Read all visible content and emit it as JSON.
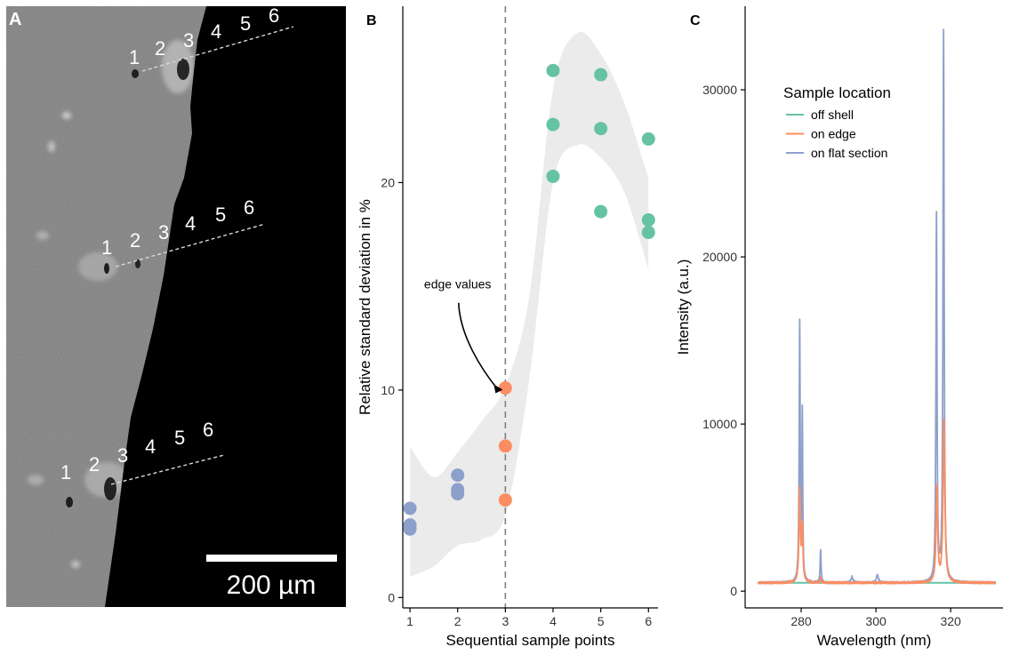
{
  "panels": {
    "a": {
      "label": "A",
      "scalebar": "200 µm"
    },
    "b": {
      "label": "B"
    },
    "c": {
      "label": "C"
    }
  },
  "micrograph_markers": {
    "line1": [
      "1",
      "2",
      "3",
      "4",
      "5",
      "6"
    ],
    "line2": [
      "1",
      "2",
      "3",
      "4",
      "5",
      "6"
    ],
    "line3": [
      "1",
      "2",
      "3",
      "4",
      "5",
      "6"
    ]
  },
  "colors": {
    "off_shell": "#66c2a5",
    "on_edge": "#fc8d62",
    "on_flat": "#8da0cb",
    "ribbon": "#ebebeb",
    "sem_bg": "#7b7b7b",
    "sem_black": "#000000"
  },
  "chart_data": [
    {
      "id": "rsd",
      "type": "scatter",
      "xlabel": "Sequential sample points",
      "ylabel": "Relative standard deviation in %",
      "xlim": [
        0.85,
        6.2
      ],
      "ylim": [
        -0.5,
        28.5
      ],
      "xticks": [
        "1",
        "2",
        "3",
        "4",
        "5",
        "6"
      ],
      "yticks": [
        "0",
        "10",
        "20"
      ],
      "vline_x": 3,
      "annotation": {
        "text": "edge values",
        "target": [
          3,
          10.1
        ]
      },
      "series": [
        {
          "name": "on flat section",
          "points": [
            [
              1,
              4.3
            ],
            [
              1,
              3.5
            ],
            [
              1,
              3.3
            ],
            [
              2,
              5.9
            ],
            [
              2,
              5.2
            ],
            [
              2,
              5.0
            ]
          ]
        },
        {
          "name": "on edge",
          "points": [
            [
              3,
              10.1
            ],
            [
              3,
              7.3
            ],
            [
              3,
              4.7
            ]
          ]
        },
        {
          "name": "off shell",
          "points": [
            [
              4,
              25.4
            ],
            [
              4,
              22.8
            ],
            [
              4,
              20.3
            ],
            [
              5,
              25.2
            ],
            [
              5,
              22.6
            ],
            [
              5,
              18.6
            ],
            [
              6,
              22.1
            ],
            [
              6,
              18.2
            ],
            [
              6,
              17.6
            ]
          ]
        }
      ],
      "ribbon": {
        "x": [
          1,
          1.5,
          2,
          2.5,
          3,
          3.5,
          4,
          4.5,
          5,
          5.5,
          6
        ],
        "upper": [
          7.3,
          5.8,
          7.0,
          8.5,
          10.2,
          14.5,
          24.5,
          27.2,
          26.2,
          23.8,
          20.2
        ],
        "lower": [
          1.0,
          1.5,
          2.5,
          2.8,
          4.0,
          10.5,
          20.0,
          21.8,
          21.2,
          19.5,
          15.8
        ]
      }
    },
    {
      "id": "spectra",
      "type": "line",
      "title": "Sample location",
      "xlabel": "Wavelength (nm)",
      "ylabel": "Intensity (a.u.)",
      "xlim": [
        265,
        334
      ],
      "ylim": [
        -1000,
        35000
      ],
      "xticks": [
        "280",
        "300",
        "320"
      ],
      "yticks": [
        "0",
        "10000",
        "20000",
        "30000"
      ],
      "baseline": 500,
      "legend": [
        "off shell",
        "on edge",
        "on flat section"
      ],
      "series": [
        {
          "name": "off shell",
          "peaks": []
        },
        {
          "name": "on edge",
          "peaks": [
            [
              279.6,
              5500,
              0.22
            ],
            [
              280.3,
              3200,
              0.2
            ],
            [
              285.2,
              300,
              0.15
            ],
            [
              316.3,
              5700,
              0.25
            ],
            [
              318.2,
              9700,
              0.28
            ]
          ]
        },
        {
          "name": "on flat section",
          "peaks": [
            [
              279.6,
              15400,
              0.16
            ],
            [
              280.3,
              9900,
              0.13
            ],
            [
              285.2,
              1900,
              0.15
            ],
            [
              293.6,
              350,
              0.35
            ],
            [
              300.4,
              450,
              0.3
            ],
            [
              316.2,
              21900,
              0.17
            ],
            [
              318.1,
              32900,
              0.18
            ]
          ]
        }
      ]
    }
  ]
}
